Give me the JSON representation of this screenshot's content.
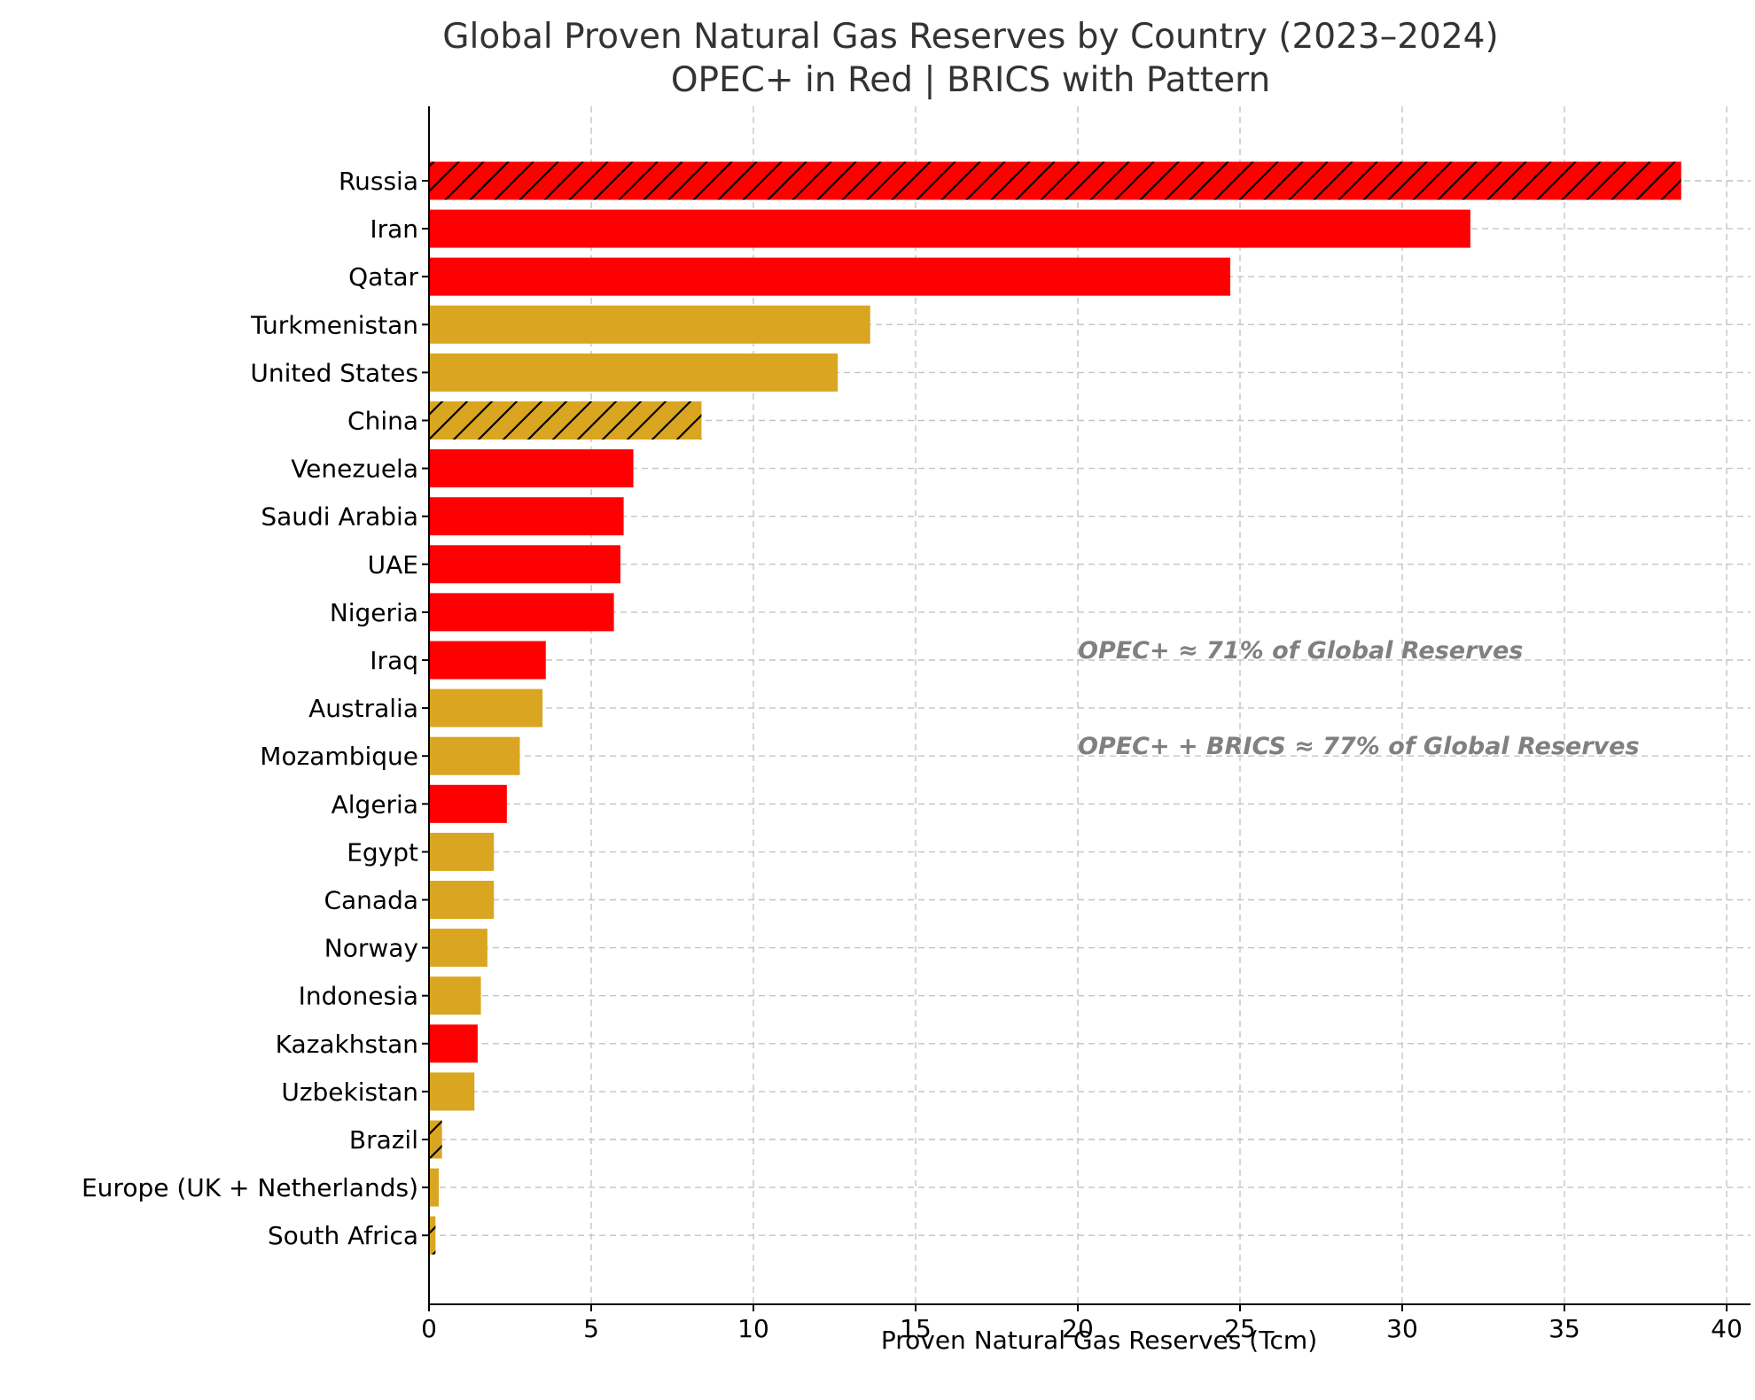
{
  "chart_data": {
    "type": "bar",
    "orientation": "horizontal",
    "title": "Global Proven Natural Gas Reserves by Country (2023–2024)",
    "subtitle": "OPEC+ in Red | BRICS with Pattern",
    "xlabel": "Proven Natural Gas Reserves (Tcm)",
    "ylabel": "",
    "xlim": [
      0,
      40.5
    ],
    "xticks": [
      0,
      5,
      10,
      15,
      20,
      25,
      30,
      35,
      40
    ],
    "grid": true,
    "colors": {
      "opec": "#ff0000",
      "other": "#daa520",
      "hatch": "#000000"
    },
    "categories": [
      "Russia",
      "Iran",
      "Qatar",
      "Turkmenistan",
      "United States",
      "China",
      "Venezuela",
      "Saudi Arabia",
      "UAE",
      "Nigeria",
      "Iraq",
      "Australia",
      "Mozambique",
      "Algeria",
      "Egypt",
      "Canada",
      "Norway",
      "Indonesia",
      "Kazakhstan",
      "Uzbekistan",
      "Brazil",
      "Europe (UK + Netherlands)",
      "South Africa"
    ],
    "values": [
      38.6,
      32.1,
      24.7,
      13.6,
      12.6,
      8.4,
      6.3,
      6.0,
      5.9,
      5.7,
      3.6,
      3.5,
      2.8,
      2.4,
      2.0,
      2.0,
      1.8,
      1.6,
      1.5,
      1.4,
      0.4,
      0.3,
      0.2
    ],
    "opec_plus": [
      true,
      true,
      true,
      false,
      false,
      false,
      true,
      true,
      true,
      true,
      true,
      false,
      false,
      true,
      false,
      false,
      false,
      false,
      true,
      false,
      false,
      false,
      false
    ],
    "brics_pattern": [
      true,
      false,
      false,
      false,
      false,
      true,
      false,
      false,
      false,
      false,
      false,
      false,
      false,
      false,
      false,
      false,
      false,
      false,
      false,
      false,
      true,
      false,
      true
    ],
    "annotations": [
      {
        "text": "OPEC+ ≈ 71% of Global Reserves",
        "x": 20,
        "y_category": "Iraq"
      },
      {
        "text": "OPEC+ + BRICS ≈ 77% of Global Reserves",
        "x": 20,
        "y_category": "Mozambique"
      }
    ]
  }
}
